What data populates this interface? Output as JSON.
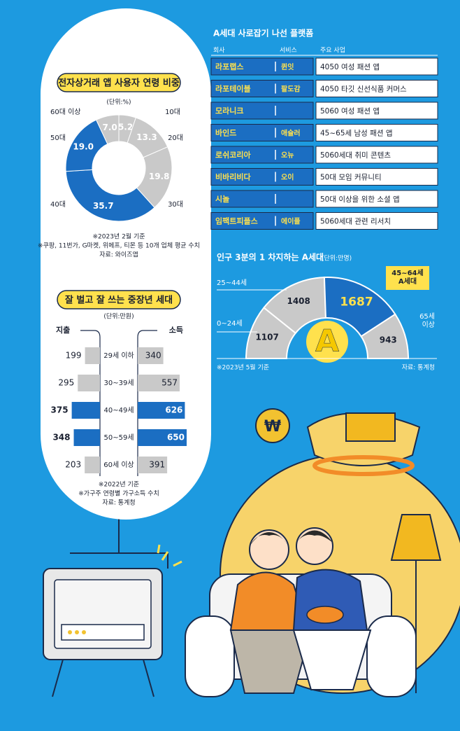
{
  "chart_data": [
    {
      "type": "donut",
      "title": "전자상거래 앱 사용자 연령 비중",
      "subtitle": "(단위:%)",
      "categories": [
        "10대",
        "20대",
        "30대",
        "40대",
        "50대",
        "60대 이상"
      ],
      "values": [
        5.2,
        13.3,
        19.8,
        35.7,
        19.0,
        7.0
      ],
      "value_labels": [
        "5.2",
        "13.3",
        "19.8",
        "35.7",
        "19.0",
        "7.0"
      ],
      "colors": [
        "#c9c9c9",
        "#c9c9c9",
        "#c9c9c9",
        "#1b6ec2",
        "#1b6ec2",
        "#c9c9c9"
      ],
      "notes": [
        "※2023년 2월 기준",
        "※쿠팡, 11번가, G마켓, 위메프, 티몬 등 10개 업체 평균 수치",
        "자료: 와이즈앱"
      ]
    },
    {
      "type": "bar",
      "title": "잘 벌고 잘 쓰는 중장년 세대",
      "subtitle": "(단위:만원)",
      "categories": [
        "29세 이하",
        "30~39세",
        "40~49세",
        "50~59세",
        "60세 이상"
      ],
      "series": [
        {
          "name": "지출",
          "values": [
            199,
            295,
            375,
            348,
            203
          ],
          "colors": [
            "#c9c9c9",
            "#c9c9c9",
            "#1b6ec2",
            "#1b6ec2",
            "#c9c9c9"
          ]
        },
        {
          "name": "소득",
          "values": [
            340,
            557,
            626,
            650,
            391
          ],
          "colors": [
            "#c9c9c9",
            "#c9c9c9",
            "#1b6ec2",
            "#1b6ec2",
            "#c9c9c9"
          ]
        }
      ],
      "notes": [
        "※2022년 기준",
        "※가구주 연령별 가구소득 수치",
        "자료: 통계청"
      ]
    },
    {
      "type": "semicircle",
      "title": "인구 3분의 1 차지하는 A세대",
      "subtitle": "(단위:만명)",
      "categories": [
        "0~24세",
        "25~44세",
        "45~64세\nA세대",
        "65세\n이상"
      ],
      "values": [
        1107,
        1408,
        1687,
        943
      ],
      "colors": [
        "#c9c9c9",
        "#c9c9c9",
        "#1b6ec2",
        "#c9c9c9"
      ],
      "center_label": "A",
      "notes": [
        "※2023년 5월 기준",
        "자료: 통계청"
      ]
    }
  ],
  "table": {
    "title": "A세대 사로잡기 나선 플랫폼",
    "header": [
      "회사",
      "서비스",
      "주요 사업"
    ],
    "rows": [
      [
        "라포랩스",
        "퀸잇",
        "4050 여성 패션 앱"
      ],
      [
        "라포테이블",
        "팔도감",
        "4050 타깃 신선식품 커머스"
      ],
      [
        "모라니크",
        null,
        "5060 여성 패션 앱"
      ],
      [
        "바인드",
        "애슐러",
        "45~65세 남성 패션 앱"
      ],
      [
        "로쉬코리아",
        "오뉴",
        "5060세대 취미 콘텐츠"
      ],
      [
        "비바리비다",
        "오이",
        "50대 모임 커뮤니티"
      ],
      [
        "시놀",
        null,
        "50대 이상을 위한 소셜 앱"
      ],
      [
        "임팩트피플스",
        "에이플",
        "5060세대 관련 리서치"
      ]
    ]
  }
}
